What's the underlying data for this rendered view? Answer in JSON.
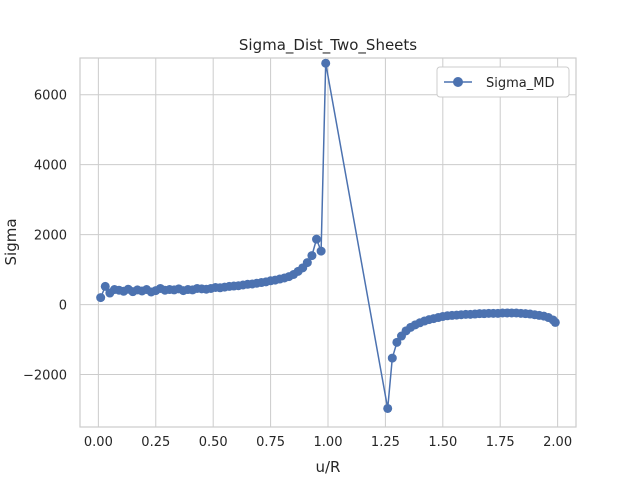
{
  "chart_data": {
    "type": "line",
    "title": "Sigma_Dist_Two_Sheets",
    "xlabel": "u/R",
    "ylabel": "Sigma",
    "xlim": [
      -0.08,
      2.08
    ],
    "ylim": [
      -3500,
      7050
    ],
    "xticks": [
      0.0,
      0.25,
      0.5,
      0.75,
      1.0,
      1.25,
      1.5,
      1.75,
      2.0
    ],
    "xtick_labels": [
      "0.00",
      "0.25",
      "0.50",
      "0.75",
      "1.00",
      "1.25",
      "1.50",
      "1.75",
      "2.00"
    ],
    "yticks": [
      -2000,
      0,
      2000,
      4000,
      6000
    ],
    "ytick_labels": [
      "−2000",
      "0",
      "2000",
      "4000",
      "6000"
    ],
    "grid": true,
    "legend": "top-right",
    "series": [
      {
        "name": "Sigma_MD",
        "color": "#4c72b0",
        "x": [
          0.01,
          0.03,
          0.05,
          0.07,
          0.09,
          0.11,
          0.13,
          0.15,
          0.17,
          0.19,
          0.21,
          0.23,
          0.25,
          0.27,
          0.29,
          0.31,
          0.33,
          0.35,
          0.37,
          0.39,
          0.41,
          0.43,
          0.45,
          0.47,
          0.49,
          0.51,
          0.53,
          0.55,
          0.57,
          0.59,
          0.61,
          0.63,
          0.65,
          0.67,
          0.69,
          0.71,
          0.73,
          0.75,
          0.77,
          0.79,
          0.81,
          0.83,
          0.85,
          0.87,
          0.89,
          0.91,
          0.93,
          0.95,
          0.97,
          0.99,
          1.26,
          1.28,
          1.3,
          1.32,
          1.34,
          1.36,
          1.38,
          1.4,
          1.42,
          1.44,
          1.46,
          1.48,
          1.5,
          1.52,
          1.54,
          1.56,
          1.58,
          1.6,
          1.62,
          1.64,
          1.66,
          1.68,
          1.7,
          1.72,
          1.74,
          1.76,
          1.78,
          1.8,
          1.82,
          1.84,
          1.86,
          1.88,
          1.9,
          1.92,
          1.94,
          1.96,
          1.98,
          1.99
        ],
        "y": [
          200,
          520,
          330,
          430,
          410,
          380,
          440,
          370,
          420,
          390,
          430,
          360,
          400,
          460,
          410,
          430,
          420,
          450,
          400,
          430,
          420,
          460,
          450,
          440,
          460,
          490,
          480,
          500,
          520,
          530,
          540,
          560,
          580,
          590,
          610,
          630,
          650,
          680,
          700,
          730,
          760,
          800,
          860,
          950,
          1050,
          1200,
          1400,
          1870,
          1530,
          6900,
          -2970,
          -1530,
          -1080,
          -900,
          -750,
          -650,
          -580,
          -520,
          -470,
          -430,
          -400,
          -370,
          -340,
          -320,
          -310,
          -300,
          -290,
          -280,
          -280,
          -270,
          -260,
          -260,
          -250,
          -250,
          -250,
          -240,
          -240,
          -240,
          -240,
          -250,
          -260,
          -270,
          -290,
          -310,
          -330,
          -370,
          -440,
          -510
        ]
      }
    ]
  }
}
